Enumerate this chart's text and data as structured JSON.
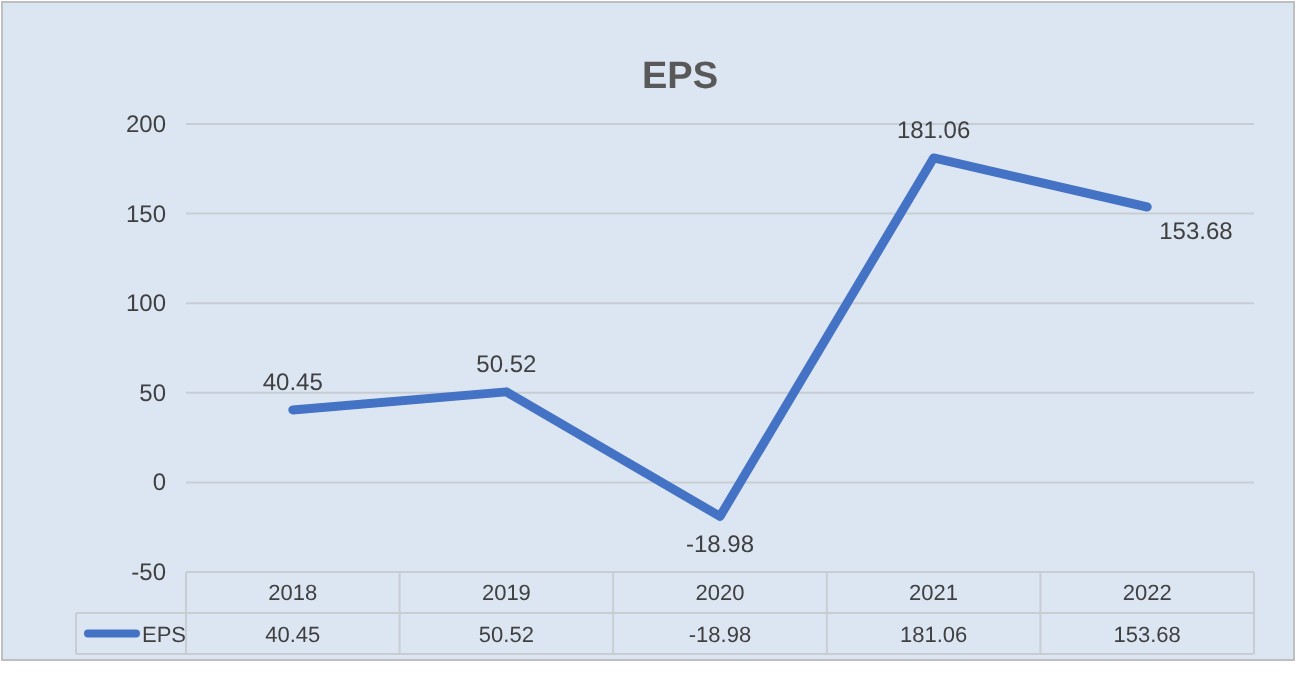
{
  "chart_data": {
    "type": "line",
    "title": "EPS",
    "categories": [
      "2018",
      "2019",
      "2020",
      "2021",
      "2022"
    ],
    "series": [
      {
        "name": "EPS",
        "color": "#4472c4",
        "values": [
          40.45,
          50.52,
          -18.98,
          181.06,
          153.68
        ]
      }
    ],
    "annotations": [
      {
        "text": "40.45",
        "x": "2018",
        "y": 40.45
      },
      {
        "text": "50.52",
        "x": "2019",
        "y": 50.52
      },
      {
        "text": "-18.98",
        "x": "2020",
        "y": -18.98
      },
      {
        "text": "181.06",
        "x": "2021",
        "y": 181.06
      },
      {
        "text": "153.68",
        "x": "2022",
        "y": 153.68
      }
    ],
    "ylim": [
      -50,
      200
    ],
    "yticks": [
      -50,
      0,
      50,
      100,
      150,
      200
    ],
    "grid": "y",
    "data_labels": true,
    "legend": "bottom",
    "marker": "none",
    "line_style": "solid"
  }
}
